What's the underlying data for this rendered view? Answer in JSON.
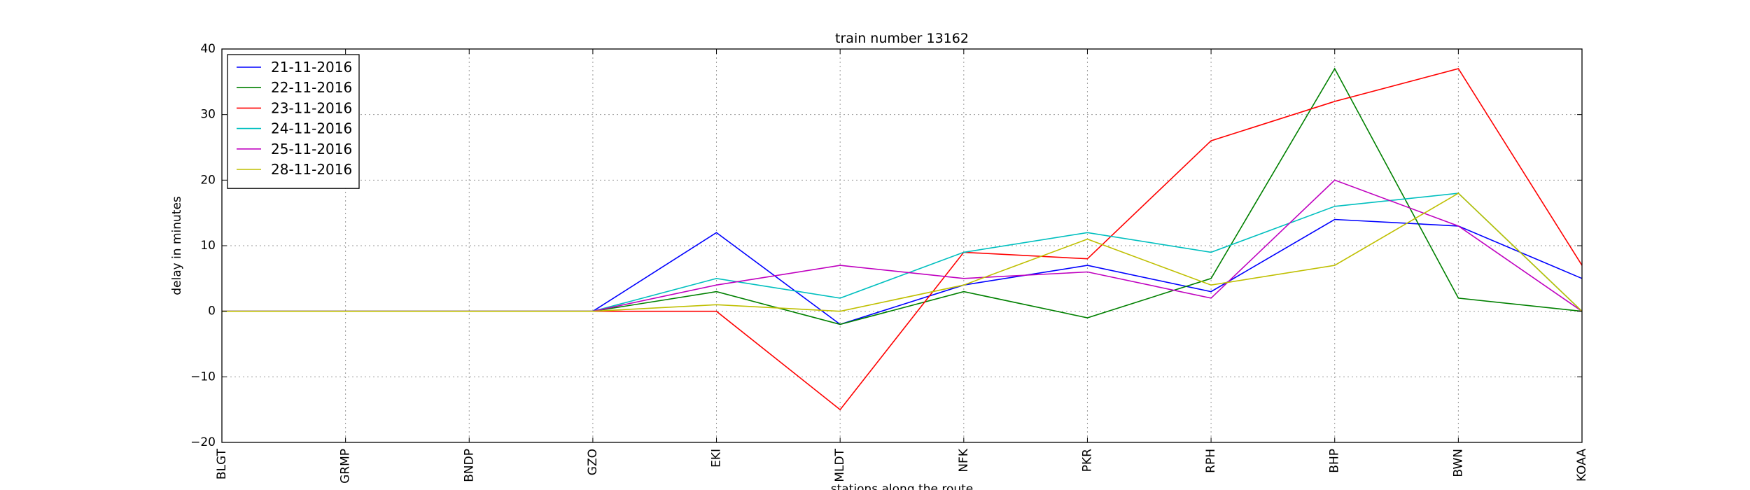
{
  "chart_data": {
    "type": "line",
    "title": "train number 13162",
    "xlabel": "stations along the route",
    "ylabel": "delay in minutes",
    "categories": [
      "BLGT",
      "GRMP",
      "BNDP",
      "GZO",
      "EKI",
      "MLDT",
      "NFK",
      "PKR",
      "RPH",
      "BHP",
      "BWN",
      "KOAA"
    ],
    "ylim": [
      -20,
      40
    ],
    "yticks": [
      -20,
      -10,
      0,
      10,
      20,
      30,
      40
    ],
    "ytick_labels": [
      "−20",
      "−10",
      "0",
      "10",
      "20",
      "30",
      "40"
    ],
    "grid": true,
    "legend_position": "top-left",
    "series": [
      {
        "name": "21-11-2016",
        "color": "#0000ff",
        "values": [
          0,
          0,
          0,
          0,
          12,
          -2,
          4,
          7,
          3,
          14,
          13,
          5
        ]
      },
      {
        "name": "22-11-2016",
        "color": "#008000",
        "values": [
          0,
          0,
          0,
          0,
          3,
          -2,
          3,
          -1,
          5,
          37,
          2,
          0
        ]
      },
      {
        "name": "23-11-2016",
        "color": "#ff0000",
        "values": [
          0,
          0,
          0,
          0,
          0,
          -15,
          9,
          8,
          26,
          32,
          37,
          7
        ]
      },
      {
        "name": "24-11-2016",
        "color": "#00bfbf",
        "values": [
          0,
          0,
          0,
          0,
          5,
          2,
          9,
          12,
          9,
          16,
          18,
          0
        ]
      },
      {
        "name": "25-11-2016",
        "color": "#bf00bf",
        "values": [
          0,
          0,
          0,
          0,
          4,
          7,
          5,
          6,
          2,
          20,
          13,
          0
        ]
      },
      {
        "name": "28-11-2016",
        "color": "#bfbf00",
        "values": [
          0,
          0,
          0,
          0,
          1,
          0,
          4,
          11,
          4,
          7,
          18,
          0
        ]
      }
    ]
  }
}
